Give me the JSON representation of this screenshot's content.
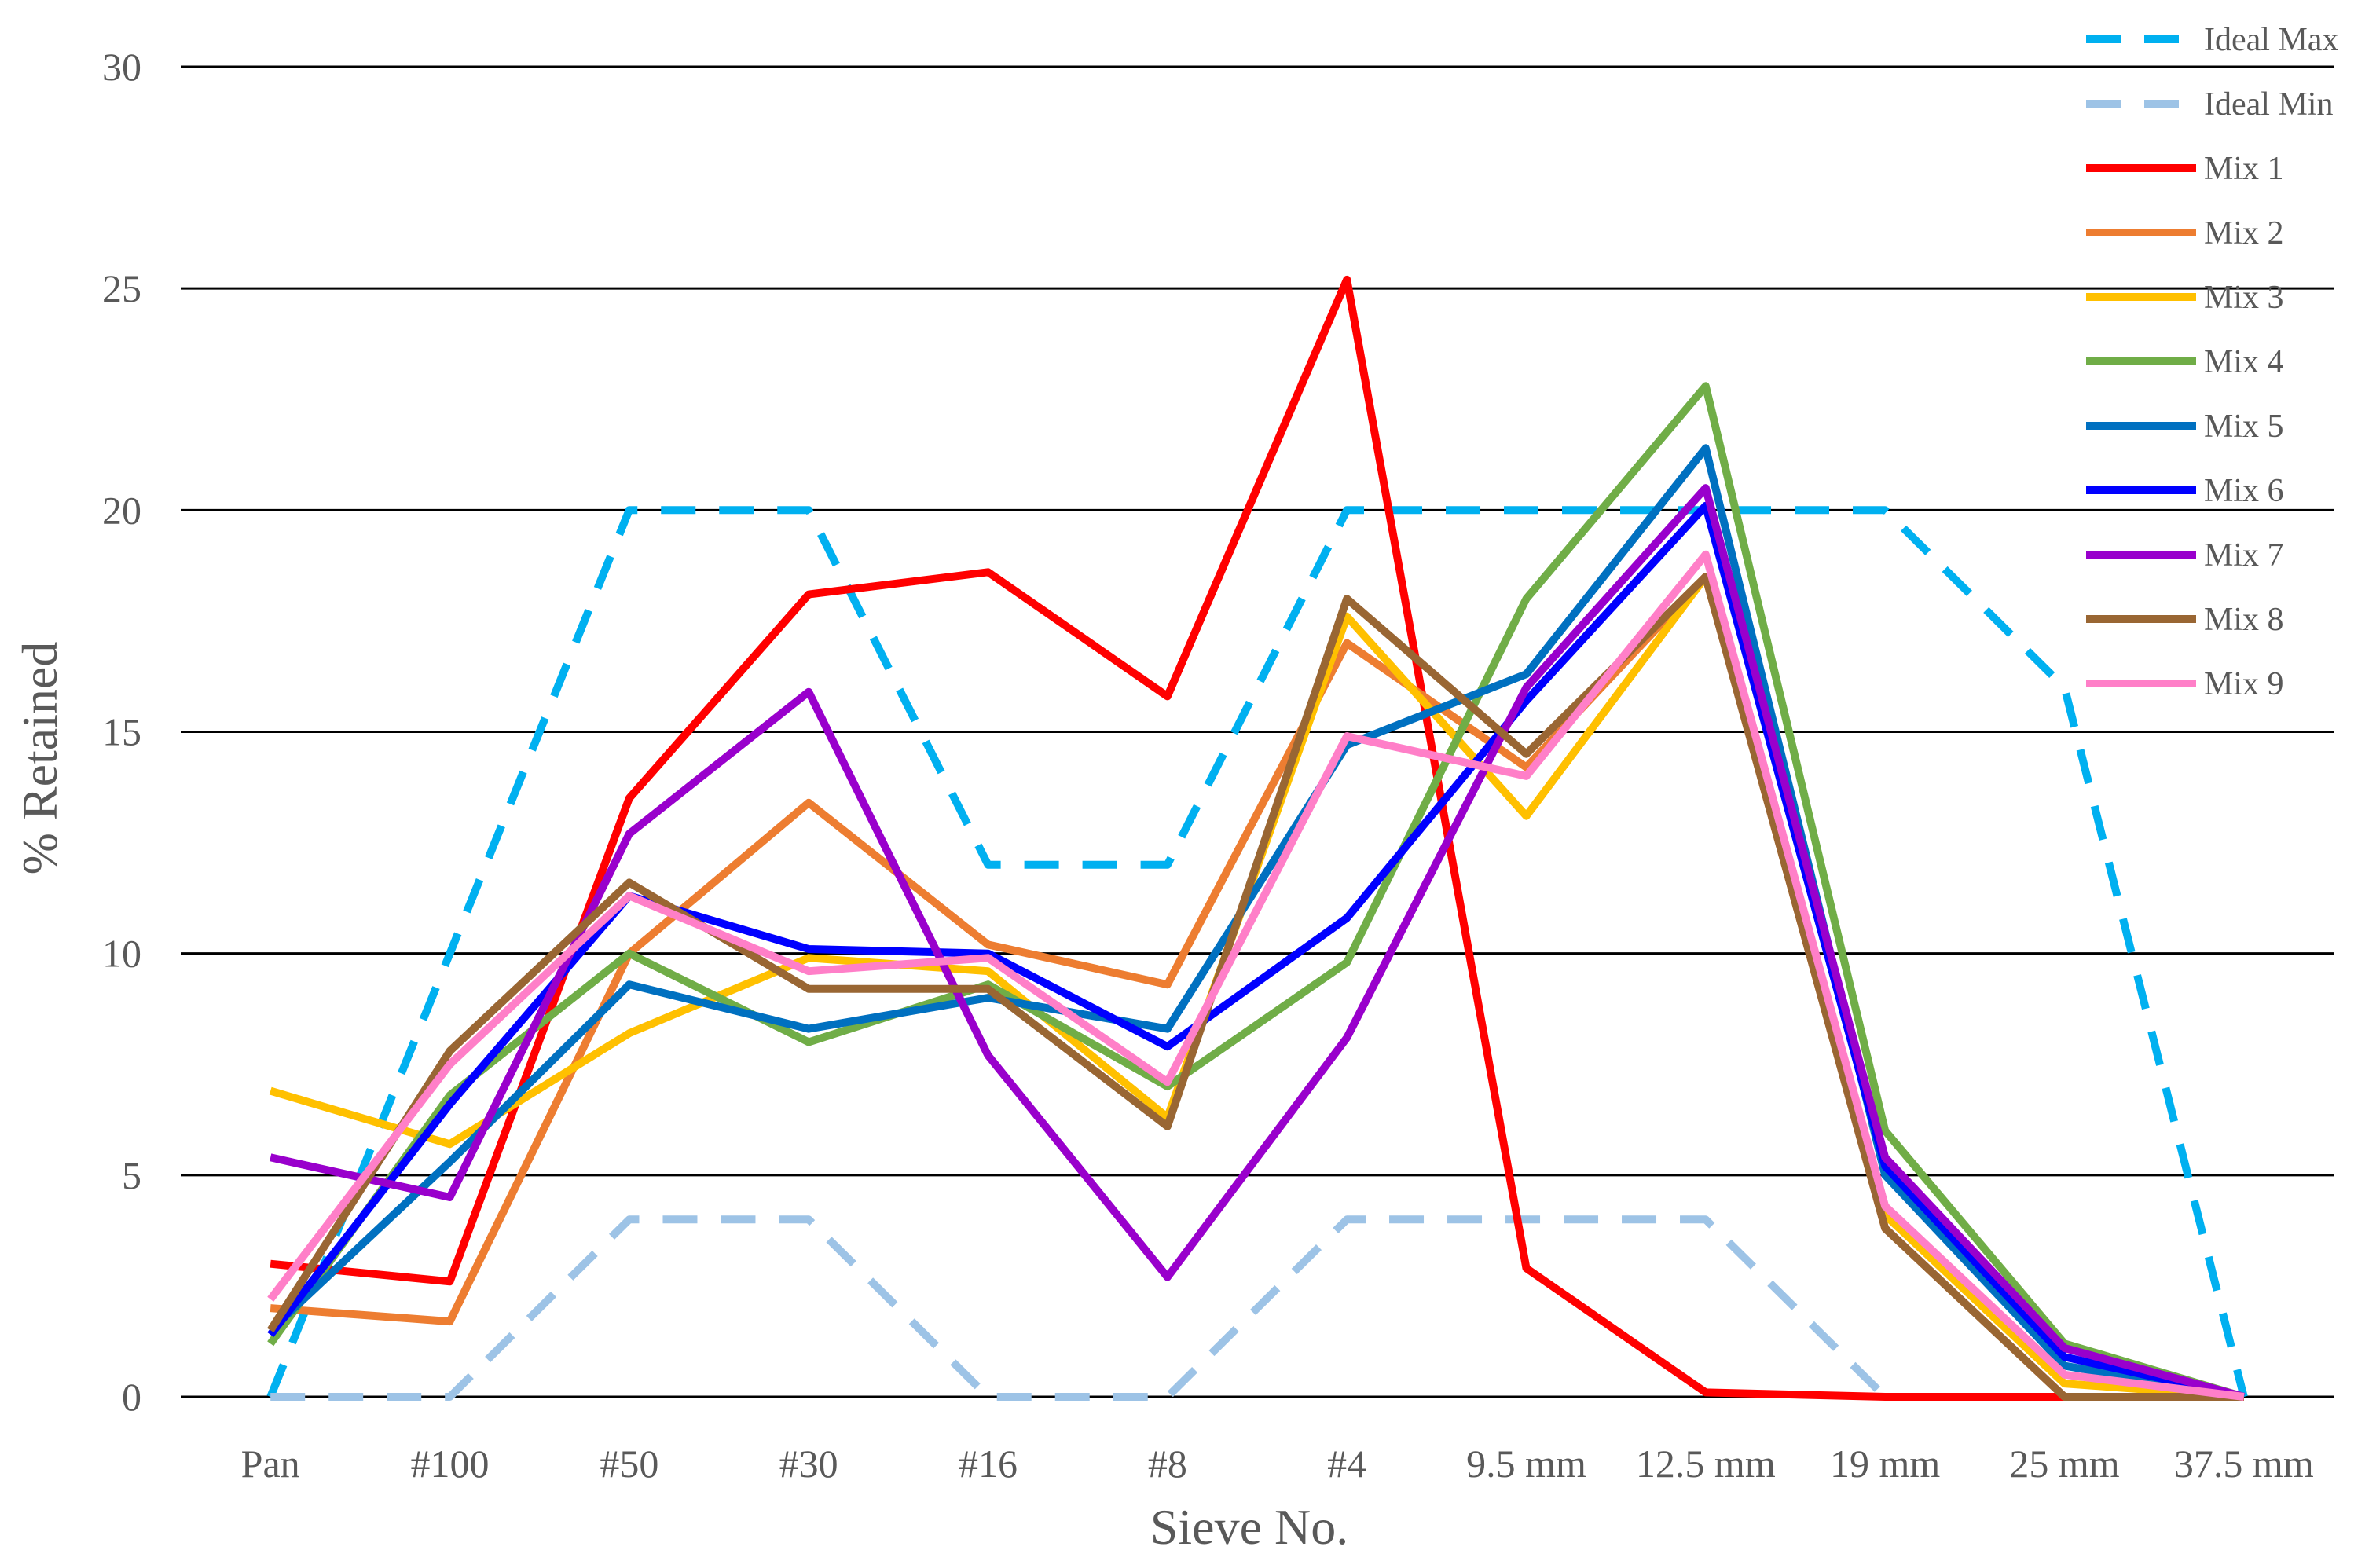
{
  "chart_data": {
    "type": "line",
    "title": "",
    "xlabel": "Sieve No.",
    "ylabel": "% Retained",
    "ylim": [
      0,
      30
    ],
    "yticks": [
      0,
      5,
      10,
      15,
      20,
      25,
      30
    ],
    "grid": "horizontal",
    "legend_position": "top-right",
    "categories": [
      "Pan",
      "#100",
      "#50",
      "#30",
      "#16",
      "#8",
      "#4",
      "9.5 mm",
      "12.5 mm",
      "19 mm",
      "25 mm",
      "37.5 mm"
    ],
    "series": [
      {
        "name": "Ideal Max",
        "color": "#00B0F0",
        "dash": "dashed",
        "values": [
          0,
          10,
          20,
          20,
          12,
          12,
          20,
          20,
          20,
          20,
          16,
          0
        ]
      },
      {
        "name": "Ideal Min",
        "color": "#9DC3E6",
        "dash": "dashed",
        "values": [
          0,
          0,
          4,
          4,
          0,
          0,
          4,
          4,
          4,
          0,
          null,
          null
        ]
      },
      {
        "name": "Mix 1",
        "color": "#FF0000",
        "dash": "solid",
        "values": [
          3.0,
          2.6,
          13.5,
          18.1,
          18.6,
          15.8,
          25.2,
          2.9,
          0.1,
          0,
          0,
          0
        ]
      },
      {
        "name": "Mix 2",
        "color": "#ED7D31",
        "dash": "solid",
        "values": [
          2.0,
          1.7,
          10.0,
          13.4,
          10.2,
          9.3,
          17.0,
          14.2,
          18.5,
          3.8,
          0,
          0
        ]
      },
      {
        "name": "Mix 3",
        "color": "#FFC000",
        "dash": "solid",
        "values": [
          6.9,
          5.7,
          8.2,
          9.9,
          9.6,
          6.3,
          17.6,
          13.1,
          18.5,
          4.1,
          0.3,
          0
        ]
      },
      {
        "name": "Mix 4",
        "color": "#70AD47",
        "dash": "solid",
        "values": [
          1.2,
          6.8,
          10.0,
          8.0,
          9.3,
          7.0,
          9.8,
          18.0,
          22.8,
          6.0,
          1.2,
          0
        ]
      },
      {
        "name": "Mix 5",
        "color": "#0070C0",
        "dash": "solid",
        "values": [
          1.5,
          5.3,
          9.3,
          8.3,
          9.0,
          8.3,
          14.7,
          16.3,
          21.4,
          5.0,
          0.7,
          0
        ]
      },
      {
        "name": "Mix 6",
        "color": "#0000FF",
        "dash": "solid",
        "values": [
          1.4,
          6.6,
          11.3,
          10.1,
          10.0,
          7.9,
          10.8,
          15.7,
          20.1,
          5.2,
          0.9,
          0
        ]
      },
      {
        "name": "Mix 7",
        "color": "#9900CC",
        "dash": "solid",
        "values": [
          5.4,
          4.5,
          12.7,
          15.9,
          7.7,
          2.7,
          8.1,
          16.0,
          20.5,
          5.4,
          1.1,
          0
        ]
      },
      {
        "name": "Mix 8",
        "color": "#996633",
        "dash": "solid",
        "values": [
          1.5,
          7.8,
          11.6,
          9.2,
          9.2,
          6.1,
          18.0,
          14.5,
          18.5,
          3.8,
          0,
          0
        ]
      },
      {
        "name": "Mix 9",
        "color": "#FF7FC8",
        "dash": "solid",
        "values": [
          2.2,
          7.5,
          11.3,
          9.6,
          9.9,
          7.1,
          14.9,
          14.0,
          19.0,
          4.3,
          0.5,
          0
        ]
      }
    ]
  }
}
